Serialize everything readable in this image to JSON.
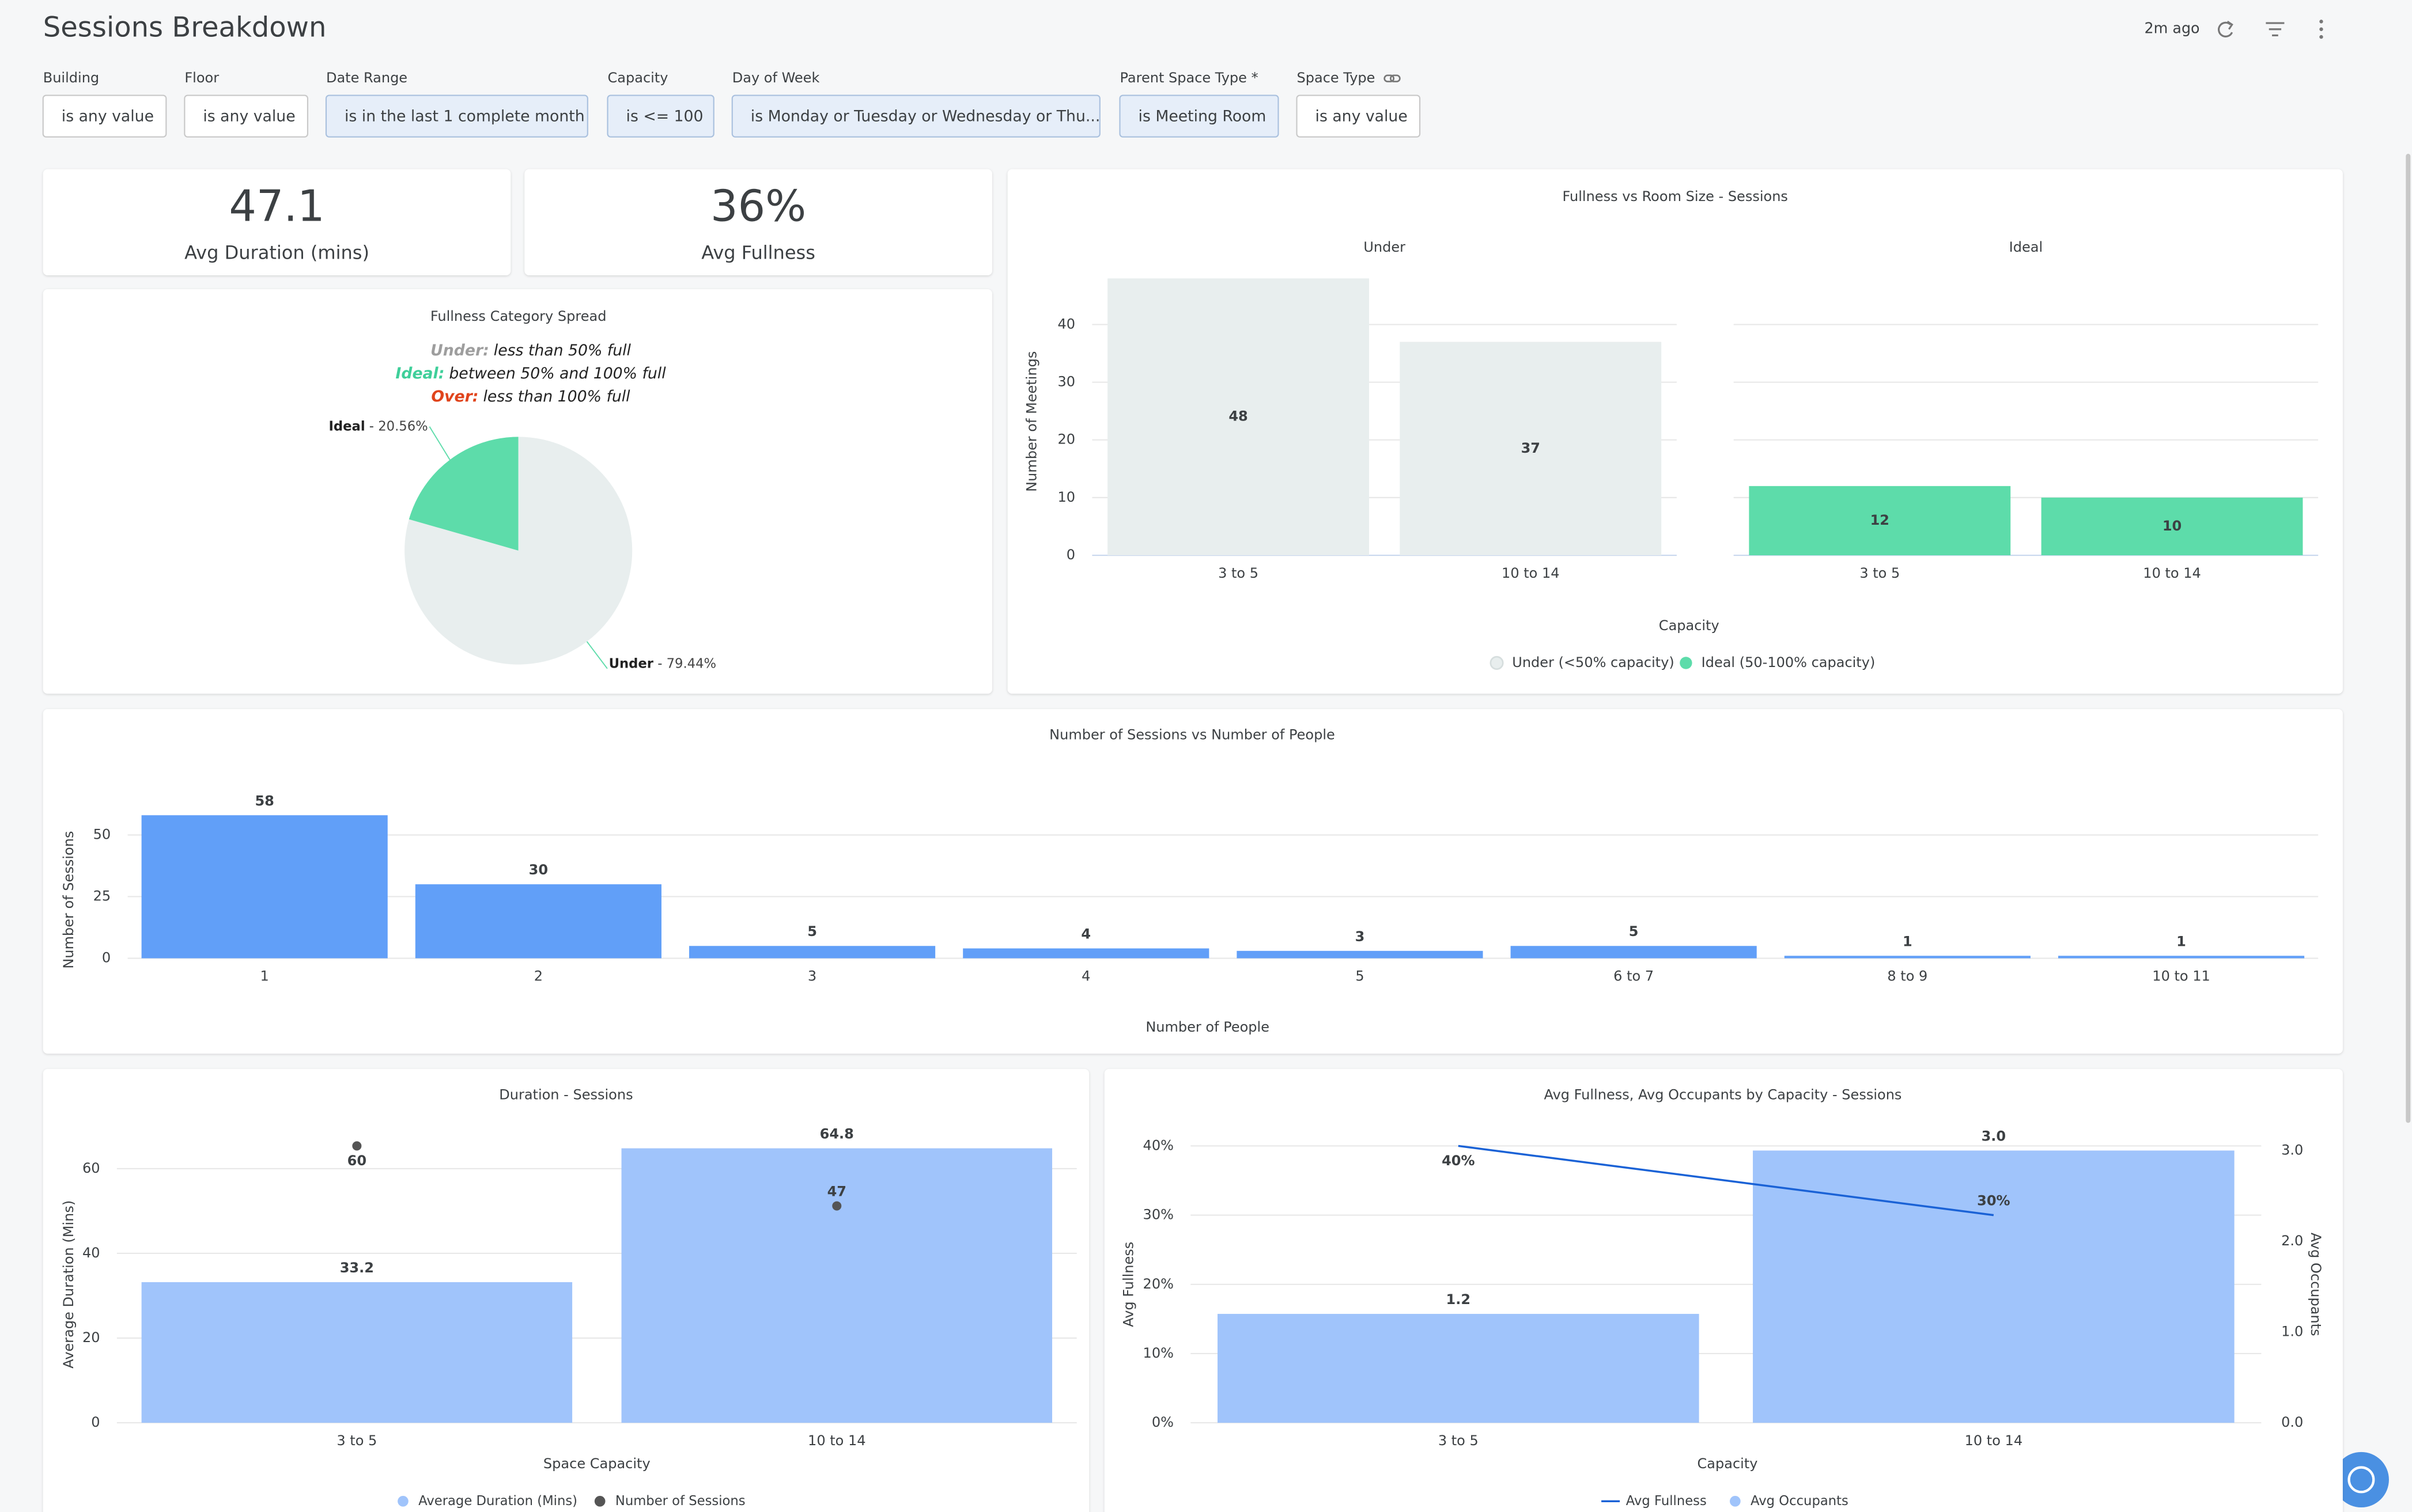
{
  "header": {
    "title": "Sessions Breakdown",
    "updated": "2m ago"
  },
  "filters": [
    {
      "label": "Building",
      "value": "is any value",
      "active": false
    },
    {
      "label": "Floor",
      "value": "is any value",
      "active": false
    },
    {
      "label": "Date Range",
      "value": "is in the last 1 complete month",
      "active": true
    },
    {
      "label": "Capacity",
      "value": "is <= 100",
      "active": true
    },
    {
      "label": "Day of Week",
      "value": "is Monday or Tuesday or Wednesday or Thu...",
      "active": true
    },
    {
      "label": "Parent Space Type *",
      "value": "is Meeting Room",
      "active": true
    },
    {
      "label": "Space Type",
      "value": "is any value",
      "active": false
    }
  ],
  "kpis": [
    {
      "value": "47.1",
      "label": "Avg Duration (mins)"
    },
    {
      "value": "36%",
      "label": "Avg Fullness"
    }
  ],
  "charts": {
    "fullness_spread": {
      "type": "pie",
      "title": "Fullness Category Spread",
      "notes": [
        {
          "term": "Under:",
          "text": "less than 50% full",
          "color": "#9e9e9e"
        },
        {
          "term": "Ideal:",
          "text": "between 50% and 100% full",
          "color": "#3fcf9a"
        },
        {
          "term": "Over:",
          "text": "less than 100% full",
          "color": "#e0441c"
        }
      ],
      "categories": [
        "Ideal",
        "Under"
      ],
      "values": [
        20.56,
        79.44
      ],
      "value_labels": [
        "20.56%",
        "79.44%"
      ],
      "colors": [
        "#5ddcaa",
        "#e8eeee"
      ]
    },
    "room_size": {
      "type": "bar",
      "title": "Fullness vs Room Size - Sessions",
      "x_label": "Capacity",
      "y_label": "Number of Meetings",
      "categories": [
        "3 to 5",
        "10 to 14"
      ],
      "series": [
        {
          "name": "Under (<50% capacity)",
          "facet": "Under",
          "color": "#e8eeee",
          "values": [
            48,
            37
          ]
        },
        {
          "name": "Ideal (50-100% capacity)",
          "facet": "Ideal",
          "color": "#5ddcaa",
          "values": [
            12,
            10
          ]
        }
      ],
      "ylim": [
        0,
        48
      ],
      "yticks": [
        0,
        10,
        20,
        30,
        40
      ]
    },
    "sessions_people": {
      "type": "bar",
      "title": "Number of Sessions vs Number of People",
      "x_label": "Number of People",
      "y_label": "Number of Sessions",
      "categories": [
        "1",
        "2",
        "3",
        "4",
        "5",
        "6 to 7",
        "8 to 9",
        "10 to 11"
      ],
      "values": [
        58,
        30,
        5,
        4,
        3,
        5,
        1,
        1
      ],
      "color": "#619ff8",
      "ylim": [
        0,
        58
      ],
      "yticks": [
        0,
        25,
        50
      ]
    },
    "duration": {
      "type": "bar",
      "title": "Duration - Sessions",
      "x_label": "Space Capacity",
      "y_label": "Average Duration (Mins)",
      "categories": [
        "3 to 5",
        "10 to 14"
      ],
      "series": [
        {
          "name": "Average Duration (Mins)",
          "color": "#a0c4fb",
          "label_color": "#8ab4f8",
          "values": [
            33.2,
            64.8
          ]
        },
        {
          "name": "Number of Sessions",
          "color": "#555555",
          "label_color": "#111111",
          "axis": "y2",
          "values": [
            60,
            47
          ]
        }
      ],
      "ylim": [
        0,
        65
      ],
      "yticks": [
        0,
        20,
        40,
        60
      ],
      "y2lim": [
        0,
        60
      ]
    },
    "fullness_occupants": {
      "type": "bar",
      "title": "Avg Fullness, Avg Occupants by Capacity - Sessions",
      "x_label": "Capacity",
      "y_label": "Avg Fullness",
      "y2_label": "Avg Occupants",
      "categories": [
        "3 to 5",
        "10 to 14"
      ],
      "series": [
        {
          "name": "Avg Fullness",
          "color": "#1a62d6",
          "values": [
            40,
            30
          ],
          "value_labels": [
            "40%",
            "30%"
          ]
        },
        {
          "name": "Avg Occupants",
          "color": "#a0c4fb",
          "axis": "y2",
          "values": [
            1.2,
            3
          ],
          "value_labels": [
            "1.2",
            "3.0"
          ]
        }
      ],
      "ylim": [
        0,
        40
      ],
      "yticks": [
        {
          "value": 0,
          "label": "0%"
        },
        {
          "value": 10,
          "label": "10%"
        },
        {
          "value": 20,
          "label": "20%"
        },
        {
          "value": 30,
          "label": "30%"
        },
        {
          "value": 40,
          "label": "40%"
        }
      ],
      "y2lim": [
        0,
        3
      ],
      "y2ticks": [
        {
          "value": 0,
          "label": "0.0"
        },
        {
          "value": 1,
          "label": "1.0"
        },
        {
          "value": 2,
          "label": "2.0"
        },
        {
          "value": 3,
          "label": "3.0"
        }
      ]
    }
  }
}
